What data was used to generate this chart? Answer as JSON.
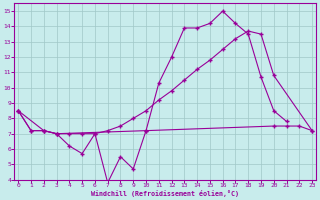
{
  "xlabel": "Windchill (Refroidissement éolien,°C)",
  "background_color": "#c8ecec",
  "grid_color": "#a0c8c8",
  "line_color": "#990099",
  "xlim_min": -0.3,
  "xlim_max": 23.3,
  "ylim_min": 4,
  "ylim_max": 15.5,
  "xticks": [
    0,
    1,
    2,
    3,
    4,
    5,
    6,
    7,
    8,
    9,
    10,
    11,
    12,
    13,
    14,
    15,
    16,
    17,
    18,
    19,
    20,
    21,
    22,
    23
  ],
  "yticks": [
    4,
    5,
    6,
    7,
    8,
    9,
    10,
    11,
    12,
    13,
    14,
    15
  ],
  "line1_x": [
    0,
    1,
    2,
    3,
    4,
    5,
    6,
    7,
    8,
    9,
    10,
    11,
    12,
    13,
    14,
    15,
    16,
    17,
    18,
    19,
    20,
    21
  ],
  "line1_y": [
    8.5,
    7.2,
    7.2,
    7.0,
    6.2,
    5.7,
    7.0,
    3.8,
    5.5,
    4.7,
    7.2,
    10.3,
    12.0,
    13.9,
    13.9,
    14.2,
    15.0,
    14.2,
    13.5,
    10.7,
    8.5,
    7.8
  ],
  "line2_x": [
    0,
    1,
    2,
    3,
    4,
    5,
    6,
    7,
    8,
    9,
    10,
    11,
    12,
    13,
    14,
    15,
    16,
    17,
    18,
    19,
    20,
    23
  ],
  "line2_y": [
    8.5,
    7.2,
    7.2,
    7.0,
    7.0,
    7.0,
    7.0,
    7.2,
    7.5,
    8.0,
    8.5,
    9.2,
    9.8,
    10.5,
    11.2,
    11.8,
    12.5,
    13.2,
    13.7,
    13.5,
    10.8,
    7.2
  ],
  "line3_x": [
    0,
    2,
    3,
    10,
    20,
    21,
    22,
    23
  ],
  "line3_y": [
    8.5,
    7.2,
    7.0,
    7.2,
    7.5,
    7.5,
    7.5,
    7.2
  ]
}
